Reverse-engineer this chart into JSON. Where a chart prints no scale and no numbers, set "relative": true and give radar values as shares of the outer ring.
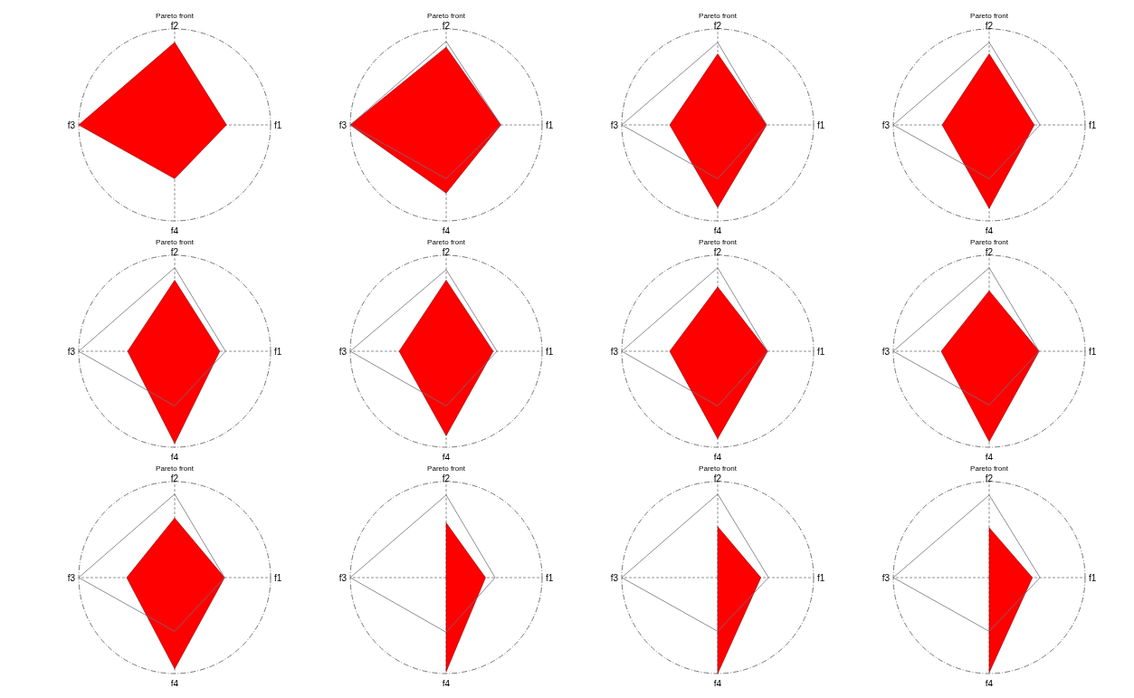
{
  "chart_data": [
    {
      "type": "radar",
      "title": "Pareto front",
      "categories": [
        "f2",
        "f1",
        "f4",
        "f3"
      ],
      "relative": true,
      "grid": true,
      "series": [
        {
          "color": "#ff0000",
          "values": [
            0.86,
            0.54,
            0.56,
            1.0
          ]
        }
      ]
    },
    {
      "type": "radar",
      "title": "Pareto front",
      "categories": [
        "f2",
        "f1",
        "f4",
        "f3"
      ],
      "relative": true,
      "grid": true,
      "series": [
        {
          "color": "#ff0000",
          "values": [
            0.81,
            0.57,
            0.71,
            1.0
          ]
        },
        {
          "color": "#6e6e80",
          "values": [
            0.87,
            0.57,
            0.56,
            1.0
          ]
        }
      ]
    },
    {
      "type": "radar",
      "title": "Pareto front",
      "categories": [
        "f2",
        "f1",
        "f4",
        "f3"
      ],
      "relative": true,
      "grid": true,
      "series": [
        {
          "color": "#ff0000",
          "values": [
            0.74,
            0.51,
            0.86,
            0.5
          ]
        },
        {
          "color": "#6e6e80",
          "values": [
            0.86,
            0.51,
            0.56,
            1.0
          ]
        }
      ]
    },
    {
      "type": "radar",
      "title": "Pareto front",
      "categories": [
        "f2",
        "f1",
        "f4",
        "f3"
      ],
      "relative": true,
      "grid": true,
      "series": [
        {
          "color": "#ff0000",
          "values": [
            0.74,
            0.47,
            0.87,
            0.49
          ]
        },
        {
          "color": "#6e6e80",
          "values": [
            0.86,
            0.53,
            0.56,
            1.0
          ]
        }
      ]
    },
    {
      "type": "radar",
      "title": "Pareto front",
      "categories": [
        "f2",
        "f1",
        "f4",
        "f3"
      ],
      "relative": true,
      "grid": true,
      "series": [
        {
          "color": "#ff0000",
          "values": [
            0.74,
            0.47,
            0.96,
            0.49
          ]
        },
        {
          "color": "#6e6e80",
          "values": [
            0.87,
            0.53,
            0.57,
            1.0
          ]
        }
      ]
    },
    {
      "type": "radar",
      "title": "Pareto front",
      "categories": [
        "f2",
        "f1",
        "f4",
        "f3"
      ],
      "relative": true,
      "grid": true,
      "series": [
        {
          "color": "#ff0000",
          "values": [
            0.74,
            0.49,
            0.88,
            0.49
          ]
        },
        {
          "color": "#6e6e80",
          "values": [
            0.85,
            0.53,
            0.57,
            1.0
          ]
        }
      ]
    },
    {
      "type": "radar",
      "title": "Pareto front",
      "categories": [
        "f2",
        "f1",
        "f4",
        "f3"
      ],
      "relative": true,
      "grid": true,
      "series": [
        {
          "color": "#ff0000",
          "values": [
            0.67,
            0.52,
            0.91,
            0.5
          ]
        },
        {
          "color": "#6e6e80",
          "values": [
            0.87,
            0.52,
            0.57,
            1.0
          ]
        }
      ]
    },
    {
      "type": "radar",
      "title": "Pareto front",
      "categories": [
        "f2",
        "f1",
        "f4",
        "f3"
      ],
      "relative": true,
      "grid": true,
      "series": [
        {
          "color": "#ff0000",
          "values": [
            0.63,
            0.52,
            0.94,
            0.5
          ]
        },
        {
          "color": "#6e6e80",
          "values": [
            0.87,
            0.52,
            0.56,
            1.0
          ]
        }
      ]
    },
    {
      "type": "radar",
      "title": "Pareto front",
      "categories": [
        "f2",
        "f1",
        "f4",
        "f3"
      ],
      "relative": true,
      "grid": true,
      "series": [
        {
          "color": "#ff0000",
          "values": [
            0.62,
            0.52,
            0.95,
            0.5
          ]
        },
        {
          "color": "#6e6e80",
          "values": [
            0.87,
            0.52,
            0.56,
            1.0
          ]
        }
      ]
    },
    {
      "type": "radar",
      "title": "Pareto front",
      "categories": [
        "f2",
        "f1",
        "f4",
        "f3"
      ],
      "relative": true,
      "grid": true,
      "series": [
        {
          "color": "#ff0000",
          "values": [
            0.57,
            0.41,
            0.98,
            0
          ]
        },
        {
          "color": "#6e6e80",
          "values": [
            0.86,
            0.51,
            0.57,
            1.0
          ]
        }
      ]
    },
    {
      "type": "radar",
      "title": "Pareto front",
      "categories": [
        "f2",
        "f1",
        "f4",
        "f3"
      ],
      "relative": true,
      "grid": true,
      "series": [
        {
          "color": "#ff0000",
          "values": [
            0.53,
            0.45,
            1.0,
            0
          ]
        },
        {
          "color": "#6e6e80",
          "values": [
            0.87,
            0.53,
            0.56,
            1.0
          ]
        }
      ]
    },
    {
      "type": "radar",
      "title": "Pareto front",
      "categories": [
        "f2",
        "f1",
        "f4",
        "f3"
      ],
      "relative": true,
      "grid": true,
      "series": [
        {
          "color": "#ff0000",
          "values": [
            0.52,
            0.45,
            0.99,
            0
          ]
        },
        {
          "color": "#6e6e80",
          "values": [
            0.86,
            0.53,
            0.56,
            1.0
          ]
        }
      ]
    }
  ]
}
